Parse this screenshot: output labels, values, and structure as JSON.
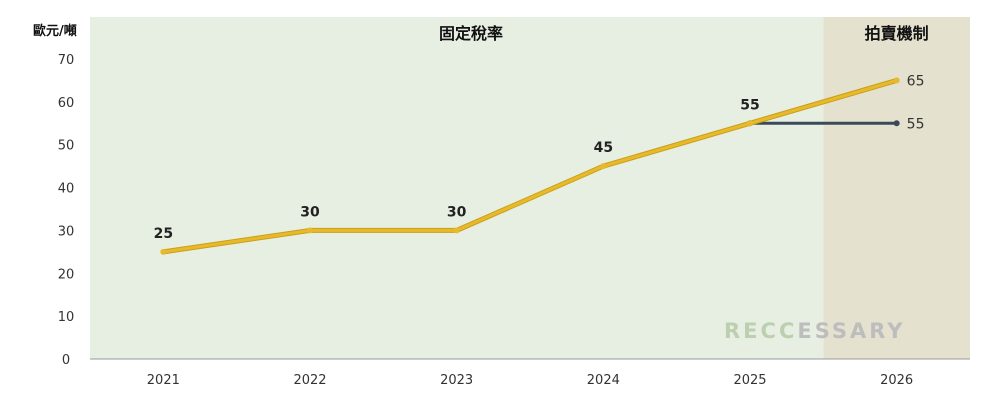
{
  "chart_data": {
    "type": "line",
    "ylabel": "歐元/噸",
    "ylim": [
      0,
      70
    ],
    "yticks": [
      0,
      10,
      20,
      30,
      40,
      50,
      60,
      70
    ],
    "categories": [
      "2021",
      "2022",
      "2023",
      "2024",
      "2025",
      "2026"
    ],
    "regions": [
      {
        "label": "固定稅率",
        "from": "2021",
        "to": "2025",
        "color": "#e7efe3"
      },
      {
        "label": "拍賣機制",
        "from": "2026",
        "to": "2026",
        "color": "#e4e1cf"
      }
    ],
    "series": [
      {
        "name": "",
        "color": "#e8b92b",
        "points": [
          {
            "x": "2021",
            "y": 25
          },
          {
            "x": "2022",
            "y": 30
          },
          {
            "x": "2023",
            "y": 30
          },
          {
            "x": "2024",
            "y": 45
          },
          {
            "x": "2025",
            "y": 55
          },
          {
            "x": "2026",
            "y": 65
          }
        ]
      },
      {
        "name": "",
        "color": "#3b4a5a",
        "points": [
          {
            "x": "2025",
            "y": 55
          },
          {
            "x": "2026",
            "y": 55
          }
        ]
      }
    ],
    "data_labels": [
      "25",
      "30",
      "30",
      "45",
      "55"
    ],
    "end_labels": [
      "65",
      "55"
    ],
    "grid": false,
    "legend": "none"
  },
  "watermark": {
    "parts": [
      {
        "text": "R",
        "color": "#bcd0b0"
      },
      {
        "text": "E",
        "color": "#bcd0b0"
      },
      {
        "text": "CC",
        "color": "#bcd0b0"
      },
      {
        "text": "ESSARY",
        "color": "#bdbdbd"
      }
    ]
  }
}
